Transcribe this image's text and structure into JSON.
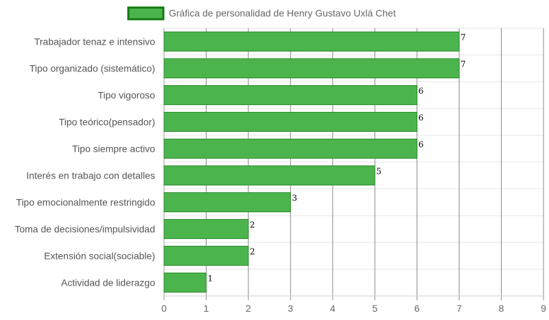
{
  "chart_data": {
    "type": "bar",
    "orientation": "horizontal",
    "categories": [
      "Trabajador tenaz e intensivo",
      "Tipo organizado (sistemático)",
      "Tipo vigoroso",
      "Tipo teórico(pensador)",
      "Tipo siempre activo",
      "Interés en trabajo con detalles",
      "Tipo emocionalmente restringido",
      "Toma de decisiones/impulsividad",
      "Extensión social(sociable)",
      "Actividad de liderazgo"
    ],
    "series": [
      {
        "name": "Gráfica de personalidad de Henry Gustavo Uxlá Chet",
        "values": [
          7,
          7,
          6,
          6,
          6,
          5,
          3,
          2,
          2,
          1
        ],
        "color": "#4cb44c",
        "border_color": "#2e8b2e"
      }
    ],
    "xlim": [
      0,
      9
    ],
    "xticks": [
      "0",
      "1",
      "2",
      "3",
      "4",
      "5",
      "6",
      "7",
      "8",
      "9"
    ],
    "grid": true,
    "legend_position": "top",
    "data_labels": true
  },
  "legend": {
    "label": "Gráfica de personalidad de Henry Gustavo Uxlá Chet"
  }
}
